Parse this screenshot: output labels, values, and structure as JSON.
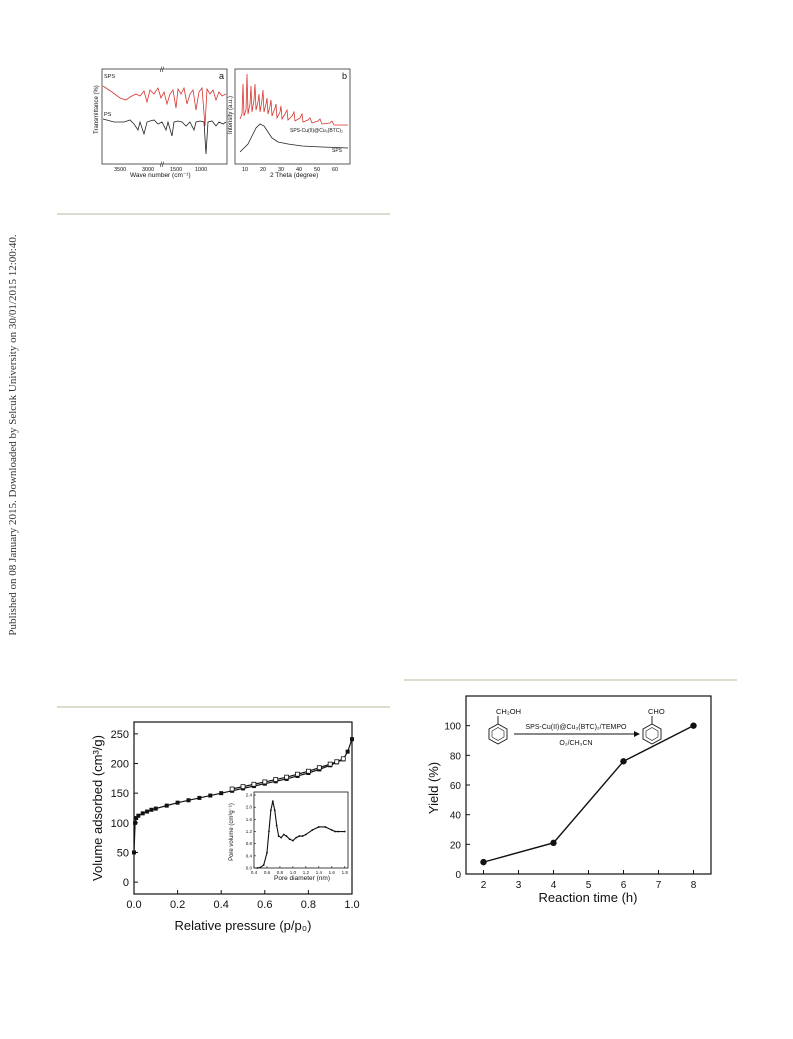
{
  "sidebar": {
    "text": "Published on 08 January 2015. Downloaded by Selcuk University on 30/01/2015 12:00:40."
  },
  "figure_top": {
    "panel_a": {
      "letter": "a",
      "ylabel": "Transmittance (%)",
      "xlabel": "Wave number (cm⁻¹)",
      "xticks": [
        "3500",
        "3000",
        "1500",
        "1000"
      ],
      "break_mark": "//",
      "series": [
        {
          "name": "SPS",
          "color": "#d9352e"
        },
        {
          "name": "PS",
          "color": "#222222"
        }
      ]
    },
    "panel_b": {
      "letter": "b",
      "ylabel": "Intensity (a.u.)",
      "xlabel": "2 Theta (degree)",
      "xticks": [
        "10",
        "20",
        "30",
        "40",
        "50",
        "60"
      ],
      "series": [
        {
          "name": "SPS-Cu(II)@Cu₃(BTC)₂",
          "color": "#d9352e"
        },
        {
          "name": "SPS",
          "color": "#222222"
        }
      ]
    }
  },
  "chart_data": [
    {
      "type": "line",
      "title": "",
      "xlabel": "Relative pressure (p/p₀)",
      "ylabel": "Volume adsorbed (cm³/g)",
      "xlim": [
        0.0,
        1.0
      ],
      "ylim": [
        -20,
        270
      ],
      "xticks": [
        0.0,
        0.2,
        0.4,
        0.6,
        0.8,
        1.0
      ],
      "yticks": [
        0,
        50,
        100,
        150,
        200,
        250
      ],
      "series": [
        {
          "x": [
            0.0,
            0.005,
            0.01,
            0.02,
            0.04,
            0.06,
            0.08,
            0.1,
            0.15,
            0.2,
            0.25,
            0.3,
            0.35,
            0.4,
            0.45,
            0.5,
            0.55,
            0.6,
            0.65,
            0.7,
            0.75,
            0.8,
            0.85,
            0.9,
            0.93,
            0.96,
            0.98,
            1.0
          ],
          "y": [
            50,
            100,
            108,
            112,
            116,
            119,
            122,
            124,
            129,
            134,
            138,
            142,
            146,
            150,
            154,
            158,
            162,
            166,
            170,
            174,
            179,
            184,
            190,
            197,
            202,
            207,
            220,
            241
          ]
        },
        {
          "x": [
            0.45,
            0.5,
            0.55,
            0.6,
            0.65,
            0.7,
            0.75,
            0.8,
            0.85,
            0.9,
            0.93,
            0.96
          ],
          "y": [
            157,
            161,
            165,
            169,
            173,
            177,
            182,
            187,
            193,
            199,
            203,
            208
          ]
        }
      ],
      "inset": {
        "xlabel": "Pore diameter (nm)",
        "ylabel": "Pore volume (cm³g⁻¹)",
        "xlim": [
          0.4,
          1.85
        ],
        "ylim": [
          0.0,
          2.5
        ],
        "xticks": [
          0.4,
          0.6,
          0.8,
          1.0,
          1.2,
          1.4,
          1.6,
          1.8
        ],
        "yticks": [
          0.0,
          0.4,
          0.8,
          1.2,
          1.6,
          2.0,
          2.4
        ],
        "x": [
          0.45,
          0.5,
          0.55,
          0.6,
          0.63,
          0.66,
          0.69,
          0.72,
          0.75,
          0.78,
          0.82,
          0.86,
          0.9,
          0.95,
          1.0,
          1.05,
          1.1,
          1.15,
          1.2,
          1.3,
          1.4,
          1.5,
          1.6,
          1.65,
          1.7,
          1.8
        ],
        "y": [
          0.0,
          0.02,
          0.1,
          0.5,
          1.2,
          1.9,
          2.2,
          1.9,
          1.4,
          1.05,
          1.0,
          1.1,
          1.05,
          0.95,
          0.9,
          1.0,
          1.05,
          1.05,
          1.1,
          1.25,
          1.35,
          1.35,
          1.25,
          1.2,
          1.2,
          1.2
        ]
      }
    },
    {
      "type": "line",
      "title": "",
      "xlabel": "Reaction time (h)",
      "ylabel": "Yield (%)",
      "xlim": [
        1.5,
        8.5
      ],
      "ylim": [
        0,
        120
      ],
      "xticks": [
        2,
        3,
        4,
        5,
        6,
        7,
        8
      ],
      "yticks": [
        0,
        20,
        40,
        60,
        80,
        100
      ],
      "x": [
        2,
        4,
        6,
        8
      ],
      "y": [
        8,
        21,
        76,
        100
      ],
      "scheme": {
        "reactant_group": "CH₂OH",
        "product_group": "CHO",
        "catalyst": "SPS-Cu(II)@Cu₃(BTC)₂/TEMPO",
        "conditions": "O₂/CH₃CN"
      }
    }
  ]
}
